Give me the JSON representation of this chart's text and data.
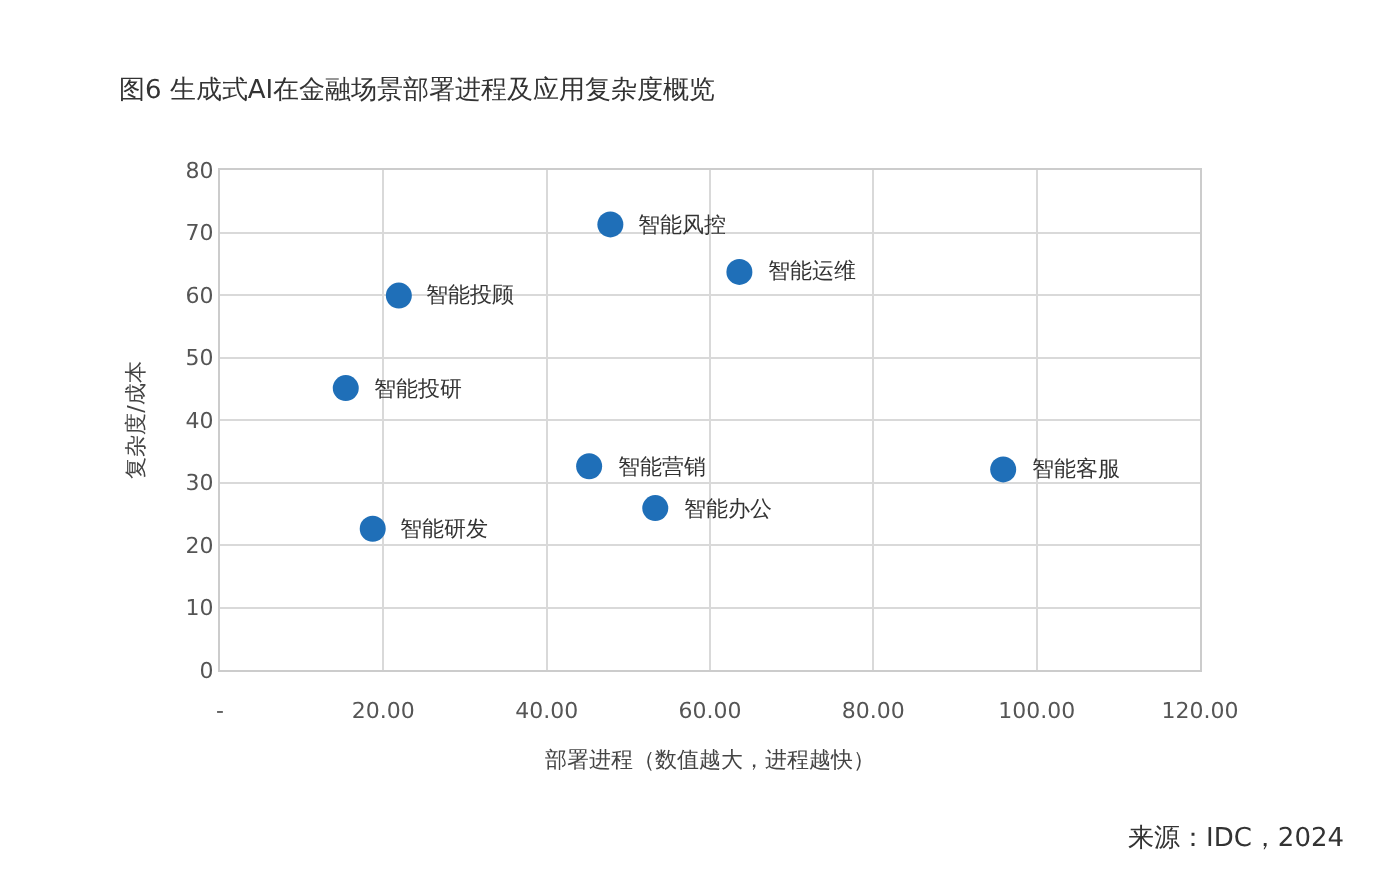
{
  "chart_data": {
    "type": "scatter",
    "title": "图6 生成式AI在金融场景部署进程及应用复杂度概览",
    "xlabel": "部署进程（数值越大，进程越快）",
    "ylabel": "复杂度/成本",
    "x": [
      47.8,
      63.6,
      21.9,
      15.4,
      45.2,
      95.9,
      53.3,
      18.7
    ],
    "series": [
      {
        "color": "#1f6fb8",
        "values": [
          71.3,
          63.7,
          59.9,
          45.1,
          32.6,
          32.1,
          25.9,
          22.6
        ]
      }
    ],
    "annotations": [
      {
        "text": "智能风控",
        "x": 47.8,
        "y": 71.3
      },
      {
        "text": "智能运维",
        "x": 63.6,
        "y": 63.7
      },
      {
        "text": "智能投顾",
        "x": 21.9,
        "y": 59.9
      },
      {
        "text": "智能投研",
        "x": 15.4,
        "y": 45.1
      },
      {
        "text": "智能营销",
        "x": 45.2,
        "y": 32.6
      },
      {
        "text": "智能客服",
        "x": 95.9,
        "y": 32.1
      },
      {
        "text": "智能办公",
        "x": 53.3,
        "y": 25.9
      },
      {
        "text": "智能研发",
        "x": 18.7,
        "y": 22.6
      },
      "来源：IDC，2024"
    ],
    "xlim": [
      0,
      120
    ],
    "xticks": [
      {
        "value": 0,
        "label": "-"
      },
      {
        "value": 20,
        "label": "20.00"
      },
      {
        "value": 40,
        "label": "40.00"
      },
      {
        "value": 60,
        "label": "60.00"
      },
      {
        "value": 80,
        "label": "80.00"
      },
      {
        "value": 100,
        "label": "100.00"
      },
      {
        "value": 120,
        "label": "120.00"
      }
    ],
    "ylim": [
      0,
      80
    ],
    "yticks": [
      0,
      10,
      20,
      30,
      40,
      50,
      60,
      70,
      80
    ],
    "grid": true,
    "marker": "circle"
  }
}
